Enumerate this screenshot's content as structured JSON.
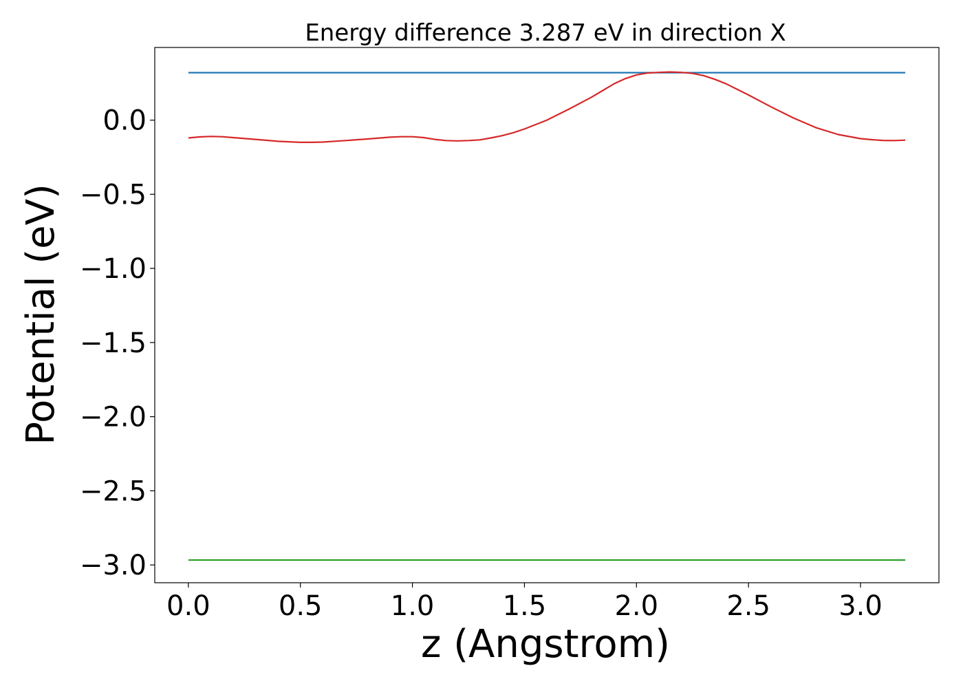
{
  "chart_data": {
    "type": "line",
    "title": "Energy difference 3.287 eV in direction X",
    "xlabel": "z (Angstrom)",
    "ylabel": "Potential (eV)",
    "xlim": [
      -0.15,
      3.35
    ],
    "ylim": [
      -3.12,
      0.49
    ],
    "xticks": [
      0.0,
      0.5,
      1.0,
      1.5,
      2.0,
      2.5,
      3.0
    ],
    "xtick_labels": [
      "0.0",
      "0.5",
      "1.0",
      "1.5",
      "2.0",
      "2.5",
      "3.0"
    ],
    "yticks": [
      0.0,
      -0.5,
      -1.0,
      -1.5,
      -2.0,
      -2.5,
      -3.0
    ],
    "ytick_labels": [
      "0.0",
      "−0.5",
      "−1.0",
      "−1.5",
      "−2.0",
      "−2.5",
      "−3.0"
    ],
    "grid": false,
    "legend": "none",
    "series": [
      {
        "color": "#1f77b4",
        "x": [
          0.0,
          3.2
        ],
        "y": [
          0.32,
          0.32
        ]
      },
      {
        "color": "#2ca02c",
        "x": [
          0.0,
          3.2
        ],
        "y": [
          -2.967,
          -2.967
        ]
      },
      {
        "color": "#d62728",
        "x": [
          0.0,
          0.05,
          0.1,
          0.15,
          0.2,
          0.3,
          0.4,
          0.5,
          0.55,
          0.6,
          0.7,
          0.8,
          0.9,
          0.95,
          1.0,
          1.05,
          1.1,
          1.15,
          1.2,
          1.25,
          1.3,
          1.35,
          1.4,
          1.45,
          1.5,
          1.6,
          1.7,
          1.8,
          1.85,
          1.9,
          1.95,
          2.0,
          2.05,
          2.1,
          2.15,
          2.2,
          2.25,
          2.3,
          2.35,
          2.4,
          2.5,
          2.6,
          2.7,
          2.8,
          2.9,
          3.0,
          3.05,
          3.1,
          3.15,
          3.2
        ],
        "y": [
          -0.12,
          -0.113,
          -0.11,
          -0.112,
          -0.118,
          -0.13,
          -0.143,
          -0.15,
          -0.15,
          -0.148,
          -0.138,
          -0.127,
          -0.115,
          -0.112,
          -0.112,
          -0.118,
          -0.13,
          -0.138,
          -0.14,
          -0.138,
          -0.133,
          -0.12,
          -0.105,
          -0.085,
          -0.06,
          0.0,
          0.075,
          0.155,
          0.2,
          0.245,
          0.28,
          0.305,
          0.318,
          0.322,
          0.325,
          0.322,
          0.315,
          0.3,
          0.275,
          0.245,
          0.17,
          0.09,
          0.015,
          -0.05,
          -0.097,
          -0.125,
          -0.132,
          -0.137,
          -0.138,
          -0.135
        ]
      }
    ]
  }
}
